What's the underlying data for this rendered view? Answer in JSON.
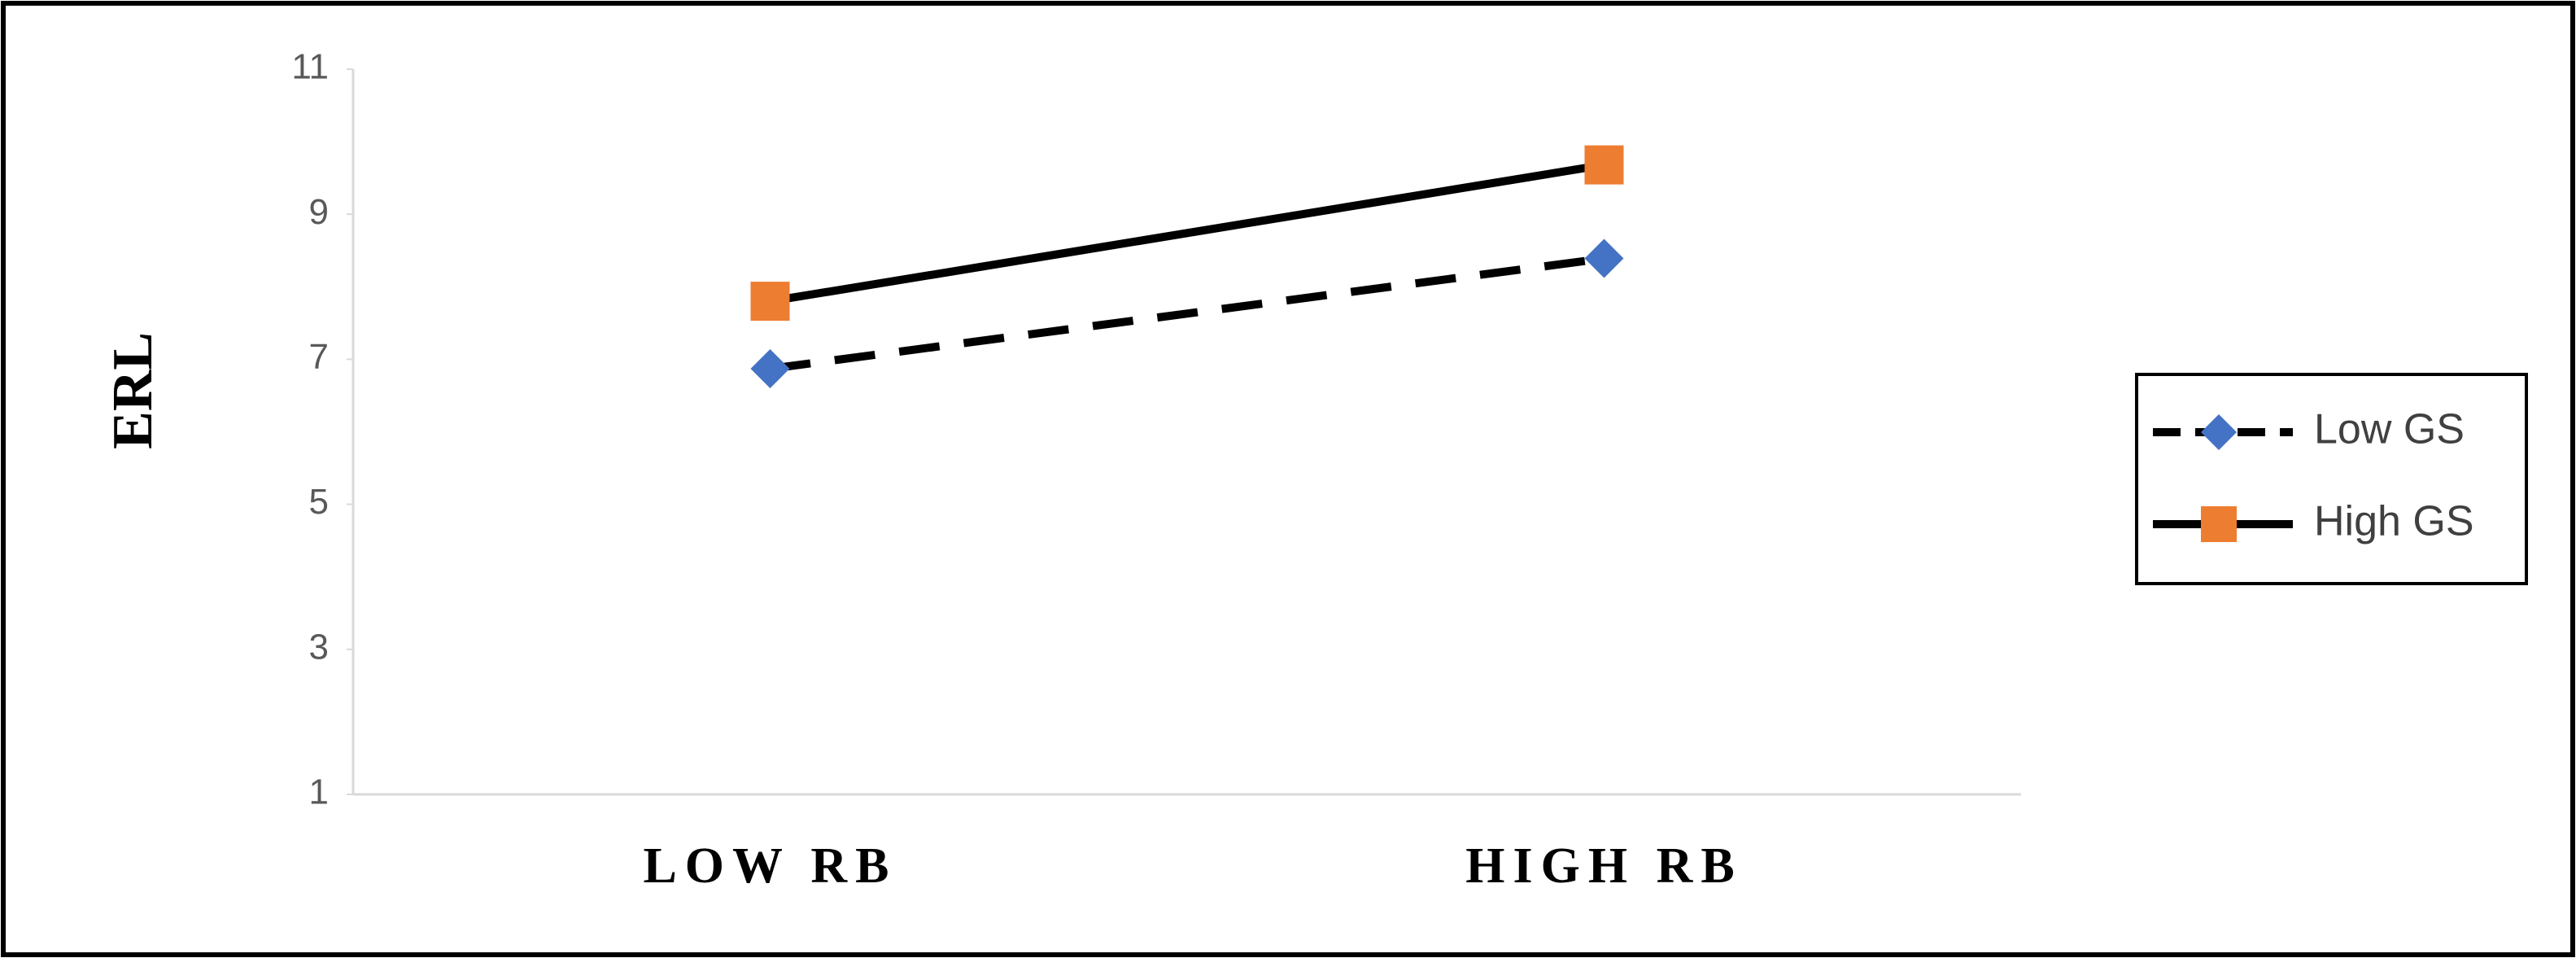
{
  "chart_data": {
    "type": "line",
    "y_label": "ERL",
    "categories": [
      "LOW RB",
      "HIGH RB"
    ],
    "series": [
      {
        "name": "Low GS",
        "color": "#4472c4",
        "line_color": "#000000",
        "line_style": "dashed",
        "marker": "diamond",
        "values": [
          6.87,
          8.39
        ]
      },
      {
        "name": "High GS",
        "color": "#ed7d31",
        "line_color": "#000000",
        "line_style": "solid",
        "marker": "square",
        "values": [
          7.8,
          9.68
        ]
      }
    ],
    "ylim": [
      1,
      11
    ],
    "yticks": [
      1,
      3,
      5,
      7,
      9,
      11
    ],
    "grid": false,
    "legend": "right"
  }
}
